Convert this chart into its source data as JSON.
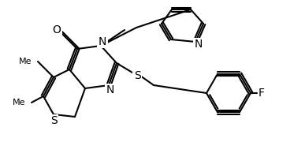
{
  "bg": "#ffffff",
  "lw": 1.5,
  "lc": "#000000",
  "fs": 9,
  "atoms": {
    "O_label": "O",
    "N1_label": "N",
    "N2_label": "N",
    "S1_label": "S",
    "S2_label": "S",
    "F_label": "F",
    "Me1_label": "Me",
    "Me2_label": "Me"
  }
}
